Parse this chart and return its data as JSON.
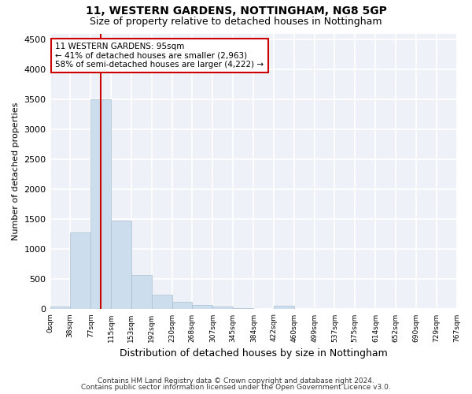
{
  "title1": "11, WESTERN GARDENS, NOTTINGHAM, NG8 5GP",
  "title2": "Size of property relative to detached houses in Nottingham",
  "xlabel": "Distribution of detached houses by size in Nottingham",
  "ylabel": "Number of detached properties",
  "bar_edges": [
    0,
    38,
    77,
    115,
    153,
    192,
    230,
    268,
    307,
    345,
    384,
    422,
    460,
    499,
    537,
    575,
    614,
    652,
    690,
    729,
    767
  ],
  "bar_heights": [
    50,
    1280,
    3500,
    1480,
    575,
    240,
    130,
    75,
    50,
    15,
    10,
    55,
    10,
    0,
    0,
    0,
    0,
    0,
    0,
    0
  ],
  "bar_color": "#ccdded",
  "bar_edgecolor": "#aabfcf",
  "vline_x": 95,
  "vline_color": "#cc0000",
  "ylim": [
    0,
    4600
  ],
  "yticks": [
    0,
    500,
    1000,
    1500,
    2000,
    2500,
    3000,
    3500,
    4000,
    4500
  ],
  "annotation_box_text": "11 WESTERN GARDENS: 95sqm\n← 41% of detached houses are smaller (2,963)\n58% of semi-detached houses are larger (4,222) →",
  "annotation_box_color": "#cc0000",
  "bg_color": "#eef2f8",
  "grid_color": "#ffffff",
  "footer1": "Contains HM Land Registry data © Crown copyright and database right 2024.",
  "footer2": "Contains public sector information licensed under the Open Government Licence v3.0."
}
